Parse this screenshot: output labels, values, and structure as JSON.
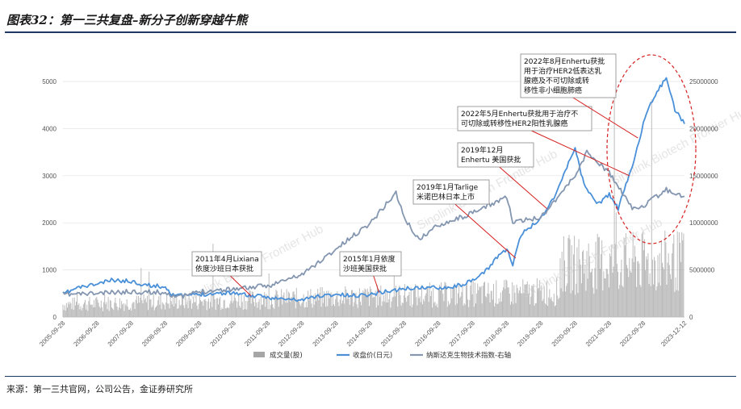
{
  "title": "图表32：第一三共复盘–新分子创新穿越牛熊",
  "source": "来源：第一三共官网，公司公告，金证券研究所",
  "watermark": "Sinolink Biotech Frontier Hub",
  "chart_data": {
    "type": "line",
    "x_dates": [
      "2005-09-28",
      "2006-09-28",
      "2007-09-28",
      "2008-09-28",
      "2009-09-28",
      "2010-09-28",
      "2011-09-28",
      "2012-09-28",
      "2013-09-28",
      "2014-09-28",
      "2015-09-28",
      "2016-09-28",
      "2017-09-28",
      "2018-09-28",
      "2019-09-28",
      "2020-09-28",
      "2021-09-28",
      "2022-09-28",
      "2023-12-12"
    ],
    "ylim_left": [
      0,
      5000
    ],
    "yticks_left": [
      "0",
      "1000",
      "2000",
      "3000",
      "4000",
      "5000"
    ],
    "ylim_right": [
      0,
      25000000
    ],
    "yticks_right": [
      "0",
      "5000000",
      "10000000",
      "15000000",
      "20000000",
      "25000000"
    ],
    "series": [
      {
        "name": "成交量(股)",
        "axis": "right",
        "color": "#a6a6a6",
        "kind": "bar"
      },
      {
        "name": "收盘价(日元)",
        "axis": "left",
        "color": "#4a90d9",
        "kind": "line",
        "points": [
          [
            "2005-09-28",
            490
          ],
          [
            "2006-03-01",
            620
          ],
          [
            "2006-09-28",
            700
          ],
          [
            "2007-03-01",
            780
          ],
          [
            "2007-09-28",
            760
          ],
          [
            "2008-03-01",
            680
          ],
          [
            "2008-09-28",
            640
          ],
          [
            "2008-12-01",
            500
          ],
          [
            "2009-03-01",
            450
          ],
          [
            "2009-09-28",
            480
          ],
          [
            "2010-03-01",
            500
          ],
          [
            "2010-09-28",
            520
          ],
          [
            "2011-04-01",
            450
          ],
          [
            "2011-09-28",
            420
          ],
          [
            "2012-03-01",
            380
          ],
          [
            "2012-09-28",
            360
          ],
          [
            "2013-03-01",
            440
          ],
          [
            "2013-09-28",
            480
          ],
          [
            "2014-03-01",
            450
          ],
          [
            "2014-09-28",
            480
          ],
          [
            "2015-01-01",
            520
          ],
          [
            "2015-09-28",
            600
          ],
          [
            "2016-03-01",
            620
          ],
          [
            "2016-09-28",
            630
          ],
          [
            "2017-03-01",
            640
          ],
          [
            "2017-09-28",
            760
          ],
          [
            "2018-03-01",
            1000
          ],
          [
            "2018-06-01",
            1250
          ],
          [
            "2018-09-28",
            1450
          ],
          [
            "2018-12-01",
            1100
          ],
          [
            "2019-03-01",
            1750
          ],
          [
            "2019-09-28",
            2100
          ],
          [
            "2020-03-01",
            2600
          ],
          [
            "2020-09-28",
            3600
          ],
          [
            "2021-01-01",
            2800
          ],
          [
            "2021-06-01",
            2400
          ],
          [
            "2021-09-28",
            2600
          ],
          [
            "2022-01-01",
            2300
          ],
          [
            "2022-06-01",
            3200
          ],
          [
            "2022-09-28",
            4100
          ],
          [
            "2023-01-01",
            4600
          ],
          [
            "2023-06-01",
            5100
          ],
          [
            "2023-09-01",
            4400
          ],
          [
            "2023-12-12",
            4100
          ]
        ]
      },
      {
        "name": "纳斯达克生物技术指数-右轴",
        "axis": "right",
        "color": "#8496b0",
        "kind": "line",
        "points": [
          [
            "2005-09-28",
            2400000
          ],
          [
            "2006-09-28",
            2500000
          ],
          [
            "2007-09-28",
            2700000
          ],
          [
            "2008-09-28",
            2600000
          ],
          [
            "2009-03-01",
            2100000
          ],
          [
            "2009-09-28",
            2700000
          ],
          [
            "2010-09-28",
            3000000
          ],
          [
            "2011-09-28",
            3300000
          ],
          [
            "2012-09-28",
            4500000
          ],
          [
            "2013-09-28",
            7200000
          ],
          [
            "2014-09-28",
            10000000
          ],
          [
            "2015-07-01",
            13200000
          ],
          [
            "2015-09-28",
            10500000
          ],
          [
            "2016-03-01",
            8200000
          ],
          [
            "2016-09-28",
            9800000
          ],
          [
            "2017-09-28",
            11000000
          ],
          [
            "2018-09-28",
            12800000
          ],
          [
            "2018-12-01",
            10000000
          ],
          [
            "2019-09-28",
            10600000
          ],
          [
            "2020-09-28",
            15000000
          ],
          [
            "2021-02-01",
            17500000
          ],
          [
            "2021-09-28",
            15300000
          ],
          [
            "2022-06-01",
            11500000
          ],
          [
            "2022-09-28",
            11800000
          ],
          [
            "2023-06-01",
            13500000
          ],
          [
            "2023-12-12",
            12800000
          ]
        ]
      }
    ],
    "annotations": [
      {
        "lines": [
          "2011年4月Lixiana",
          "依度沙班日本获批"
        ],
        "date": "2011-04-01",
        "value": 450
      },
      {
        "lines": [
          "2015年1月依度",
          "沙班美国获批"
        ],
        "date": "2015-01-01",
        "value": 520
      },
      {
        "lines": [
          "2019年1月Tarlige",
          "米诺巴林日本上市"
        ],
        "date": "2019-01-01",
        "value": 1250
      },
      {
        "lines": [
          "2019年12月",
          "Enhertu 美国获批"
        ],
        "date": "2019-12-01",
        "value": 2300
      },
      {
        "lines": [
          "2022年5月Enhertu获批用于治疗不",
          "可切除或转移性HER2阳性乳腺癌"
        ],
        "date": "2022-05-01",
        "value": 3000
      },
      {
        "lines": [
          "2022年8月Enhertu获批",
          "用于治疗HER2低表达乳",
          "腺癌及不可切除或转",
          "移性非小细胞肺癌"
        ],
        "date": "2022-08-01",
        "value": 3800
      }
    ],
    "highlight_ellipse": true,
    "legend_placement": "bottom-center"
  }
}
